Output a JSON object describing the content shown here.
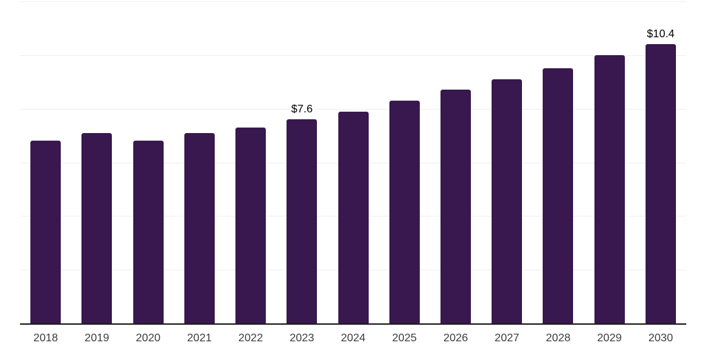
{
  "chart_data": {
    "type": "bar",
    "title": "",
    "xlabel": "",
    "ylabel": "",
    "categories": [
      "2018",
      "2019",
      "2020",
      "2021",
      "2022",
      "2023",
      "2024",
      "2025",
      "2026",
      "2027",
      "2028",
      "2029",
      "2030"
    ],
    "values": [
      6.8,
      7.1,
      6.8,
      7.1,
      7.3,
      7.6,
      7.9,
      8.3,
      8.7,
      9.1,
      9.5,
      10.0,
      10.4
    ],
    "point_labels": [
      {
        "category": "2023",
        "text": "$7.6"
      },
      {
        "category": "2030",
        "text": "$10.4"
      }
    ],
    "ylim": [
      0,
      12
    ],
    "gridline_step": 2,
    "grid": true,
    "legend": false,
    "colors": {
      "bar": "#38184E",
      "gridline": "#F0F0F3",
      "axis_line": "#1F1F1F",
      "tick_label": "#3B3B3B",
      "value_label": "#000000",
      "background": "#FFFFFF"
    }
  }
}
